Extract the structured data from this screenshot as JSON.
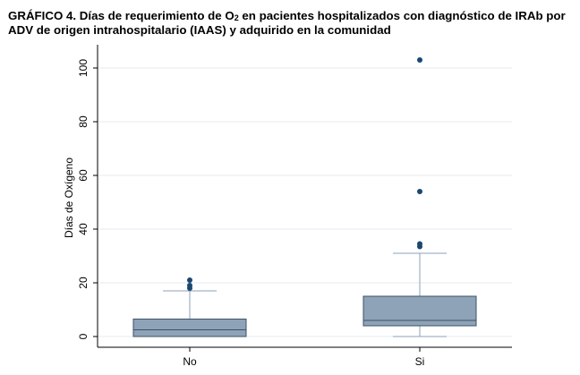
{
  "title": {
    "prefix": "GRÁFICO 4. Días de requerimiento de O",
    "sub": "2",
    "suffix": " en pacientes hospitalizados con diagnóstico de IRAb por ADV de origen intrahospitalario (IAAS) y adquirido en la comunidad"
  },
  "chart_data": {
    "type": "box",
    "title": "GRÁFICO 4. Días de requerimiento de O2 en pacientes hospitalizados con diagnóstico de IRAb por ADV de origen intrahospitalario (IAAS) y adquirido en la comunidad",
    "ylabel": "Días de Oxígeno",
    "xlabel": "",
    "ylim": [
      -4,
      106
    ],
    "yticks": [
      0,
      20,
      40,
      60,
      80,
      100
    ],
    "ytick_labels": [
      "0",
      "20",
      "40",
      "60",
      "80",
      "100"
    ],
    "grid": true,
    "categories": [
      "No",
      "Si"
    ],
    "box_color": "#8ea2b8",
    "outlier_color": "#1a476f",
    "boxes": [
      {
        "category": "No",
        "whisker_low": 0,
        "q1": 0,
        "median": 2.5,
        "q3": 6.5,
        "whisker_high": 17,
        "outliers": [
          18,
          19,
          21
        ]
      },
      {
        "category": "Si",
        "whisker_low": 0,
        "q1": 4,
        "median": 6,
        "q3": 15,
        "whisker_high": 31,
        "outliers": [
          33.5,
          34.5,
          54,
          103
        ]
      }
    ]
  }
}
